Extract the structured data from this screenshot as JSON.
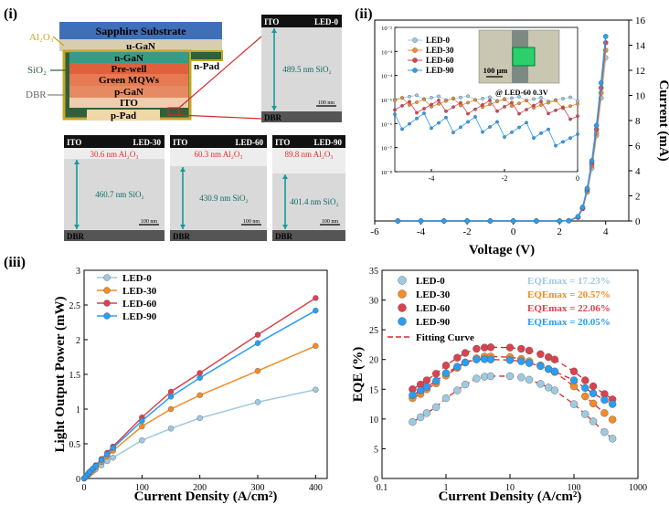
{
  "panel_labels": {
    "p1": "(i)",
    "p2": "(ii)",
    "p3": "(iii)"
  },
  "led_stack": {
    "layers": [
      "Sapphire Substrate",
      "u-GaN",
      "n-GaN",
      "Pre-well",
      "Green MQWs",
      "p-GaN",
      "ITO",
      "p-Pad"
    ],
    "side_labels": {
      "al2o3": "Al₂O₃",
      "sio2": "SiO₂",
      "dbr": "DBR",
      "npad": "n-Pad"
    },
    "colors": {
      "sapphire": "#3f6fb8",
      "ugan": "#d9cdb0",
      "ngan": "#3a9a8a",
      "prewell": "#e0603c",
      "mqw": "#e77a52",
      "pgan": "#e58a62",
      "ito": "#f1cdb0",
      "ppad": "#f0d7a8",
      "al2o3_frame": "#c7a526",
      "sio2_fill": "#2f5f3c"
    }
  },
  "sem_images": [
    {
      "ito": "ITO",
      "name": "LED-0",
      "al2o3": "",
      "sio2": "489.5 nm SiO₂",
      "scale": "100 nm",
      "dbr": "DBR"
    },
    {
      "ito": "ITO",
      "name": "LED-30",
      "al2o3": "30.6 nm Al₂O₃",
      "sio2": "460.7 nm SiO₂",
      "scale": "100 nm",
      "dbr": "DBR"
    },
    {
      "ito": "ITO",
      "name": "LED-60",
      "al2o3": "60.3 nm Al₂O₃",
      "sio2": "430.9 nm SiO₂",
      "scale": "100 nm",
      "dbr": "DBR"
    },
    {
      "ito": "ITO",
      "name": "LED-90",
      "al2o3": "89.8 nm Al₂O₃",
      "sio2": "401.4 nm SiO₂",
      "scale": "100 nm",
      "dbr": "DBR"
    }
  ],
  "colors": {
    "led0": "#9ecae1",
    "led30": "#f28c28",
    "led60": "#d9424f",
    "led90": "#2a9df4",
    "fit": "#d62728"
  },
  "chart_data": [
    {
      "type": "line",
      "title": "",
      "xlabel": "Voltage (V)",
      "ylabel": "Current (mA)",
      "xlim": [
        -6,
        5
      ],
      "ylim": [
        0,
        16
      ],
      "xticks": [
        -6,
        -4,
        -2,
        0,
        2,
        4
      ],
      "yticks": [
        0,
        2,
        4,
        6,
        8,
        10,
        12,
        14,
        16
      ],
      "series": [
        {
          "name": "LED-0",
          "x": [
            -5,
            -4,
            -3,
            -2,
            -1,
            0,
            1,
            2,
            2.4,
            2.8,
            3.0,
            3.2,
            3.4,
            3.6,
            3.8,
            4.0
          ],
          "y": [
            0,
            0,
            0,
            0,
            0,
            0,
            0,
            0,
            0.02,
            0.3,
            1.0,
            2.3,
            4.2,
            6.8,
            9.8,
            13.0
          ]
        },
        {
          "name": "LED-30",
          "x": [
            -5,
            -4,
            -3,
            -2,
            -1,
            0,
            1,
            2,
            2.4,
            2.8,
            3.0,
            3.2,
            3.4,
            3.6,
            3.8,
            4.0
          ],
          "y": [
            0,
            0,
            0,
            0,
            0,
            0,
            0,
            0,
            0.02,
            0.3,
            1.0,
            2.4,
            4.4,
            7.0,
            10.2,
            13.6
          ]
        },
        {
          "name": "LED-60",
          "x": [
            -5,
            -4,
            -3,
            -2,
            -1,
            0,
            1,
            2,
            2.4,
            2.8,
            3.0,
            3.2,
            3.4,
            3.6,
            3.8,
            4.0
          ],
          "y": [
            0,
            0,
            0,
            0,
            0,
            0,
            0,
            0,
            0.02,
            0.3,
            1.0,
            2.5,
            4.6,
            7.3,
            10.6,
            14.2
          ]
        },
        {
          "name": "LED-90",
          "x": [
            -5,
            -4,
            -3,
            -2,
            -1,
            0,
            1,
            2,
            2.4,
            2.8,
            3.0,
            3.2,
            3.4,
            3.6,
            3.8,
            4.0
          ],
          "y": [
            0,
            0,
            0,
            0,
            0,
            0,
            0,
            0,
            0.02,
            0.35,
            1.1,
            2.6,
            4.8,
            7.6,
            11.0,
            14.7
          ]
        }
      ],
      "inset": {
        "xlim": [
          -5,
          0
        ],
        "xticks": [
          -4,
          -2,
          0
        ],
        "ylim_exp": [
          -8,
          -2
        ],
        "ytick_labels": [
          "10⁻²",
          "10⁻³",
          "10⁻⁴",
          "10⁻⁵",
          "10⁻⁶",
          "10⁻⁷",
          "10⁻⁸"
        ],
        "image_scale": "100 μm",
        "image_caption": "@ LED-60 0.3V",
        "series": [
          {
            "name": "LED-0",
            "x": [
              -5,
              -4,
              -3,
              -2,
              -1,
              0
            ],
            "log_y": [
              -4.9,
              -4.92,
              -4.95,
              -4.97,
              -4.98,
              -5.0
            ]
          },
          {
            "name": "LED-30",
            "x": [
              -5,
              -4,
              -3,
              -2,
              -1,
              0
            ],
            "log_y": [
              -5.1,
              -5.12,
              -5.13,
              -5.15,
              -5.17,
              -5.3
            ]
          },
          {
            "name": "LED-60",
            "x": [
              -5,
              -4,
              -3,
              -2,
              -1,
              0
            ],
            "log_y": [
              -5.25,
              -5.3,
              -5.32,
              -5.3,
              -5.35,
              -5.6
            ]
          },
          {
            "name": "LED-90",
            "x": [
              -5,
              -4,
              -3,
              -2,
              -1,
              0
            ],
            "log_y": [
              -5.85,
              -5.95,
              -6.05,
              -6.2,
              -6.4,
              -6.8
            ]
          }
        ]
      }
    },
    {
      "type": "line",
      "title": "",
      "xlabel": "Current Density (A/cm²)",
      "ylabel": "Light Output Power (mW)",
      "xlim": [
        0,
        420
      ],
      "ylim": [
        0,
        3.0
      ],
      "xticks": [
        0,
        100,
        200,
        300,
        400
      ],
      "yticks": [
        0.0,
        0.5,
        1.0,
        1.5,
        2.0,
        2.5,
        3.0
      ],
      "series": [
        {
          "name": "LED-0",
          "x": [
            0,
            3,
            7,
            10,
            15,
            20,
            30,
            40,
            50,
            100,
            150,
            200,
            300,
            400
          ],
          "y": [
            0,
            0.02,
            0.05,
            0.07,
            0.1,
            0.13,
            0.19,
            0.25,
            0.3,
            0.55,
            0.72,
            0.87,
            1.1,
            1.28
          ]
        },
        {
          "name": "LED-30",
          "x": [
            0,
            3,
            7,
            10,
            15,
            20,
            30,
            40,
            50,
            100,
            150,
            200,
            300,
            400
          ],
          "y": [
            0,
            0.02,
            0.06,
            0.08,
            0.12,
            0.16,
            0.24,
            0.32,
            0.4,
            0.75,
            1.0,
            1.2,
            1.55,
            1.91
          ]
        },
        {
          "name": "LED-60",
          "x": [
            0,
            3,
            7,
            10,
            15,
            20,
            30,
            40,
            50,
            100,
            150,
            200,
            300,
            400
          ],
          "y": [
            0,
            0.03,
            0.07,
            0.1,
            0.14,
            0.19,
            0.28,
            0.37,
            0.46,
            0.88,
            1.25,
            1.52,
            2.07,
            2.6
          ]
        },
        {
          "name": "LED-90",
          "x": [
            0,
            3,
            7,
            10,
            15,
            20,
            30,
            40,
            50,
            100,
            150,
            200,
            300,
            400
          ],
          "y": [
            0,
            0.03,
            0.07,
            0.1,
            0.14,
            0.18,
            0.27,
            0.35,
            0.44,
            0.83,
            1.18,
            1.45,
            1.95,
            2.42
          ]
        }
      ]
    },
    {
      "type": "scatter",
      "title": "",
      "xlabel": "Current Density (A/cm²)",
      "ylabel": "EQE (%)",
      "xscale": "log",
      "xlim": [
        0.1,
        1000
      ],
      "ylim": [
        0,
        35
      ],
      "xticks": [
        0.1,
        1,
        10,
        100,
        1000
      ],
      "xtick_labels": [
        "0.1",
        "1",
        "10",
        "100",
        "1000"
      ],
      "yticks": [
        0,
        5,
        10,
        15,
        20,
        25,
        30,
        35
      ],
      "fitting_label": "Fitting Curve",
      "series": [
        {
          "name": "LED-0",
          "eqe_max": "EQEmax = 17.23%",
          "x": [
            0.3,
            0.4,
            0.5,
            0.7,
            1,
            1.5,
            2,
            3,
            4,
            5,
            10,
            15,
            20,
            30,
            40,
            50,
            100,
            150,
            200,
            300,
            400
          ],
          "y": [
            9.5,
            10.3,
            11,
            12,
            13.5,
            14.8,
            15.8,
            16.8,
            17.1,
            17.2,
            17.2,
            17,
            16.6,
            15.9,
            15.3,
            14.8,
            12.5,
            10.8,
            9.6,
            7.8,
            6.7
          ]
        },
        {
          "name": "LED-30",
          "eqe_max": "EQEmax = 20.57%",
          "x": [
            0.3,
            0.4,
            0.5,
            0.7,
            1,
            1.5,
            2,
            3,
            4,
            5,
            10,
            15,
            20,
            30,
            40,
            50,
            100,
            150,
            200,
            300,
            400
          ],
          "y": [
            13.5,
            14.2,
            15,
            16,
            17.3,
            18.6,
            19.5,
            20.2,
            20.5,
            20.5,
            20.4,
            20.1,
            19.7,
            19,
            18.4,
            17.9,
            15.5,
            13.8,
            12.6,
            11,
            9.9
          ]
        },
        {
          "name": "LED-60",
          "eqe_max": "EQEmax = 22.06%",
          "x": [
            0.3,
            0.4,
            0.5,
            0.7,
            1,
            1.5,
            2,
            3,
            4,
            5,
            10,
            15,
            20,
            30,
            40,
            50,
            100,
            150,
            200,
            300,
            400
          ],
          "y": [
            15,
            15.8,
            16.5,
            17.6,
            19,
            20.3,
            21.1,
            21.8,
            22,
            22.06,
            22,
            21.8,
            21.5,
            20.9,
            20.4,
            20,
            18,
            16.5,
            15.5,
            14.2,
            13.3
          ]
        },
        {
          "name": "LED-90",
          "eqe_max": "EQEmax = 20.05%",
          "x": [
            0.3,
            0.4,
            0.5,
            0.7,
            1,
            1.5,
            2,
            3,
            4,
            5,
            10,
            15,
            20,
            30,
            40,
            50,
            100,
            150,
            200,
            300,
            400
          ],
          "y": [
            14,
            14.8,
            15.4,
            16.4,
            17.7,
            18.8,
            19.5,
            20,
            20.05,
            20,
            19.9,
            19.7,
            19.4,
            18.9,
            18.4,
            18,
            16.5,
            15.2,
            14.3,
            13.2,
            12.5
          ]
        }
      ]
    }
  ]
}
